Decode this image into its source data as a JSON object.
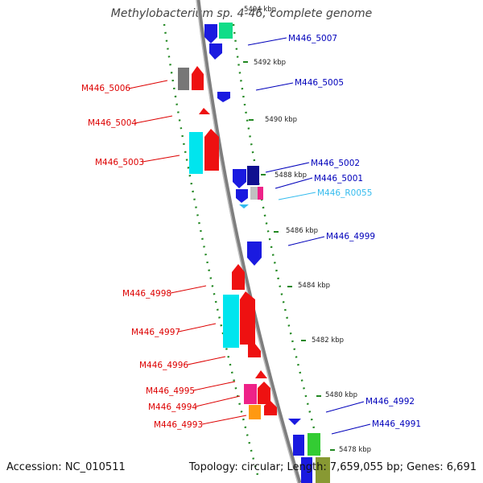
{
  "title": "Methylobacterium sp. 4-46, complete genome",
  "accession": "Accession: NC_010511",
  "stats": "Topology: circular; Length: 7,659,055 bp; Genes: 6,691",
  "colors": {
    "forward_label": "#dd0000",
    "reverse_label": "#0000bb",
    "rna_label": "#33bbee",
    "backbone": "#8a8a8a",
    "tick": "#228822"
  },
  "kbp_ticks": [
    {
      "label": "5494 kbp"
    },
    {
      "label": "5492 kbp"
    },
    {
      "label": "5490 kbp"
    },
    {
      "label": "5488 kbp"
    },
    {
      "label": "5486 kbp"
    },
    {
      "label": "5484 kbp"
    },
    {
      "label": "5482 kbp"
    },
    {
      "label": "5480 kbp"
    },
    {
      "label": "5478 kbp"
    }
  ],
  "labels_left": [
    {
      "text": "M446_5006",
      "color": "#dd0000"
    },
    {
      "text": "M446_5004",
      "color": "#dd0000"
    },
    {
      "text": "M446_5003",
      "color": "#dd0000"
    },
    {
      "text": "M446_4998",
      "color": "#dd0000"
    },
    {
      "text": "M446_4997",
      "color": "#dd0000"
    },
    {
      "text": "M446_4996",
      "color": "#dd0000"
    },
    {
      "text": "M446_4995",
      "color": "#dd0000"
    },
    {
      "text": "M446_4994",
      "color": "#dd0000"
    },
    {
      "text": "M446_4993",
      "color": "#dd0000"
    }
  ],
  "labels_right": [
    {
      "text": "M446_5007",
      "color": "#0000bb"
    },
    {
      "text": "M446_5005",
      "color": "#0000bb"
    },
    {
      "text": "M446_5002",
      "color": "#0000bb"
    },
    {
      "text": "M446_5001",
      "color": "#0000bb"
    },
    {
      "text": "M446_R0055",
      "color": "#33bbee"
    },
    {
      "text": "M446_4999",
      "color": "#0000bb"
    },
    {
      "text": "M446_4992",
      "color": "#0000bb"
    },
    {
      "text": "M446_4991",
      "color": "#0000bb"
    }
  ]
}
